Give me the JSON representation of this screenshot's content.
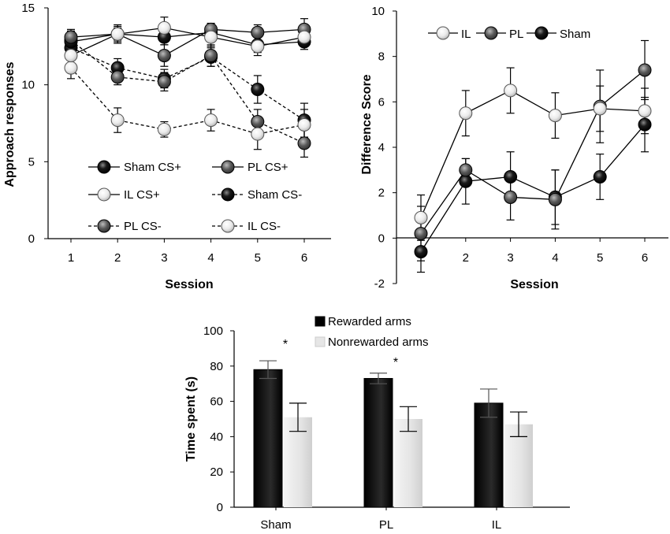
{
  "chart_data": [
    {
      "type": "line",
      "xlabel": "Session",
      "ylabel": "Approach responses",
      "x": [
        1,
        2,
        3,
        4,
        5,
        6
      ],
      "ylim": [
        0,
        15
      ],
      "yticks": [
        0,
        5,
        10,
        15
      ],
      "series": [
        {
          "name": "Sham CS+",
          "values": [
            12.8,
            13.3,
            13.1,
            13.4,
            12.6,
            12.8
          ],
          "errors": [
            0.5,
            0.5,
            0.5,
            0.4,
            0.5,
            0.5
          ],
          "marker_color": "#000000",
          "dash": false
        },
        {
          "name": "PL CS+",
          "values": [
            13.1,
            13.3,
            11.9,
            13.6,
            13.4,
            13.6
          ],
          "errors": [
            0.5,
            0.4,
            0.7,
            0.4,
            0.5,
            0.7
          ],
          "marker_color": "#555555",
          "dash": false
        },
        {
          "name": "IL CS+",
          "values": [
            11.9,
            13.3,
            13.7,
            13.1,
            12.5,
            13.1
          ],
          "errors": [
            0.6,
            0.6,
            0.7,
            0.6,
            0.6,
            0.6
          ],
          "marker_color": "#e6e6e6",
          "dash": false
        },
        {
          "name": "Sham CS-",
          "values": [
            12.4,
            11.1,
            10.4,
            11.8,
            9.7,
            7.7
          ],
          "errors": [
            0.5,
            0.6,
            0.6,
            0.6,
            0.9,
            1.1
          ],
          "marker_color": "#000000",
          "dash": true
        },
        {
          "name": "PL CS-",
          "values": [
            12.9,
            10.5,
            10.2,
            11.9,
            7.6,
            6.2
          ],
          "errors": [
            0.6,
            0.5,
            0.6,
            0.7,
            0.8,
            0.9
          ],
          "marker_color": "#555555",
          "dash": true
        },
        {
          "name": "IL CS-",
          "values": [
            11.1,
            7.7,
            7.1,
            7.7,
            6.8,
            7.4
          ],
          "errors": [
            0.7,
            0.8,
            0.5,
            0.7,
            1.0,
            1.0
          ],
          "marker_color": "#e6e6e6",
          "dash": true
        }
      ]
    },
    {
      "type": "line",
      "xlabel": "Session",
      "ylabel": "Difference Score",
      "x": [
        1,
        2,
        3,
        4,
        5,
        6
      ],
      "ylim": [
        -2,
        10
      ],
      "yticks": [
        -2,
        0,
        2,
        4,
        6,
        8,
        10
      ],
      "series": [
        {
          "name": "IL",
          "values": [
            0.9,
            5.5,
            6.5,
            5.4,
            5.7,
            5.6
          ],
          "errors": [
            1.0,
            1.0,
            1.0,
            1.0,
            1.0,
            1.0
          ],
          "marker_color": "#e6e6e6"
        },
        {
          "name": "PL",
          "values": [
            0.2,
            3.0,
            1.8,
            1.7,
            5.8,
            7.4
          ],
          "errors": [
            1.2,
            0.5,
            1.0,
            1.3,
            1.6,
            1.3
          ],
          "marker_color": "#555555"
        },
        {
          "name": "Sham",
          "values": [
            -0.6,
            2.5,
            2.7,
            1.8,
            2.7,
            5.0
          ],
          "errors": [
            0.9,
            1.0,
            1.1,
            1.2,
            1.0,
            1.2
          ],
          "marker_color": "#000000"
        }
      ]
    },
    {
      "type": "bar",
      "xlabel": "",
      "ylabel": "Time spent (s)",
      "categories": [
        "Sham",
        "PL",
        "IL"
      ],
      "ylim": [
        0,
        100
      ],
      "yticks": [
        0,
        20,
        40,
        60,
        80,
        100
      ],
      "series": [
        {
          "name": "Rewarded arms",
          "values": [
            78,
            73,
            59
          ],
          "errors": [
            5,
            3,
            8
          ],
          "color": "#000000"
        },
        {
          "name": "Nonrewarded arms",
          "values": [
            51,
            50,
            47
          ],
          "errors": [
            8,
            7,
            7
          ],
          "color": "#e6e6e6"
        }
      ],
      "annotations": [
        {
          "category": "Sham",
          "text": "*"
        },
        {
          "category": "PL",
          "text": "*"
        }
      ]
    }
  ]
}
